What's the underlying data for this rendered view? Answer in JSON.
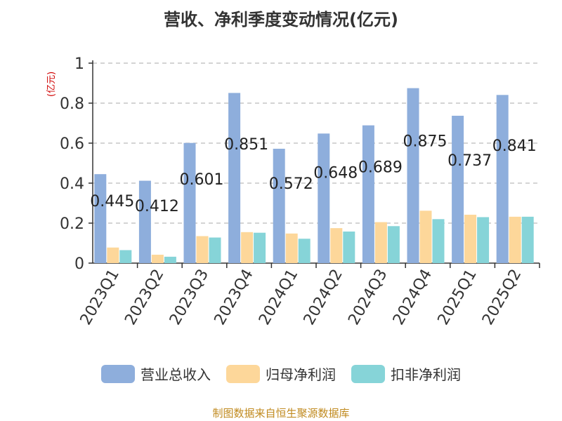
{
  "chart_data": {
    "type": "bar",
    "title": "营收、净利季度变动情况(亿元)",
    "unit_label": "(亿元)",
    "categories": [
      "2023Q1",
      "2023Q2",
      "2023Q3",
      "2023Q4",
      "2024Q1",
      "2024Q2",
      "2024Q3",
      "2024Q4",
      "2025Q1",
      "2025Q2"
    ],
    "series": [
      {
        "name": "营业总收入",
        "color": "#8eaedc",
        "values": [
          0.445,
          0.412,
          0.601,
          0.851,
          0.572,
          0.648,
          0.689,
          0.875,
          0.737,
          0.841
        ],
        "labels": [
          "0.445",
          "0.412",
          "0.601",
          "0.851",
          "0.572",
          "0.648",
          "0.689",
          "0.875",
          "0.737",
          "0.841"
        ]
      },
      {
        "name": "归母净利润",
        "color": "#fdd79a",
        "values": [
          0.078,
          0.042,
          0.135,
          0.155,
          0.148,
          0.175,
          0.205,
          0.262,
          0.242,
          0.232
        ]
      },
      {
        "name": "扣非净利润",
        "color": "#86d4d8",
        "values": [
          0.065,
          0.032,
          0.128,
          0.152,
          0.122,
          0.158,
          0.185,
          0.22,
          0.23,
          0.232
        ]
      }
    ],
    "yticks": [
      "0",
      "0.2",
      "0.4",
      "0.6",
      "0.8",
      "1"
    ],
    "ylim": [
      0,
      1
    ],
    "grid": true,
    "legend_position": "bottom"
  },
  "source": "制图数据来自恒生聚源数据库"
}
